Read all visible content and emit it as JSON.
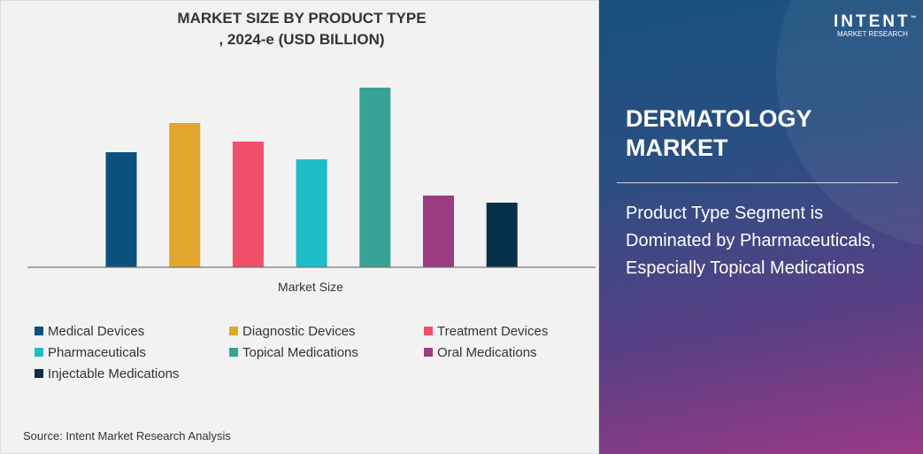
{
  "chart_data": {
    "type": "bar",
    "title": "MARKET SIZE BY PRODUCT TYPE , 2024-e (USD BILLION)",
    "title_lines": [
      "MARKET SIZE BY PRODUCT TYPE",
      ", 2024-e (USD BILLION)"
    ],
    "xlabel": "Market Size",
    "ylabel": "",
    "ylim": [
      0,
      216
    ],
    "grid": false,
    "legend_position": "bottom",
    "categories": [
      "Market Size"
    ],
    "series": [
      {
        "name": "Medical Devices",
        "values": [
          130
        ],
        "color": "#0b517e"
      },
      {
        "name": "Diagnostic Devices",
        "values": [
          163
        ],
        "color": "#e2a52d"
      },
      {
        "name": "Treatment Devices",
        "values": [
          142
        ],
        "color": "#f0506a"
      },
      {
        "name": "Pharmaceuticals",
        "values": [
          122
        ],
        "color": "#1cbdc7"
      },
      {
        "name": "Topical Medications",
        "values": [
          203
        ],
        "color": "#36a396"
      },
      {
        "name": "Oral Medications",
        "values": [
          81
        ],
        "color": "#9c3c82"
      },
      {
        "name": "Injectable Medications",
        "values": [
          73
        ],
        "color": "#06304a"
      }
    ]
  },
  "source": "Source: Intent Market Research Analysis",
  "panel": {
    "title_lines": [
      "DERMATOLOGY",
      "MARKET"
    ],
    "text": "Product Type Segment is Dominated by Pharmaceuticals, Especially Topical Medications",
    "logo": {
      "name": "INTENT",
      "tm": "™",
      "sub": "MARKET RESEARCH"
    }
  }
}
